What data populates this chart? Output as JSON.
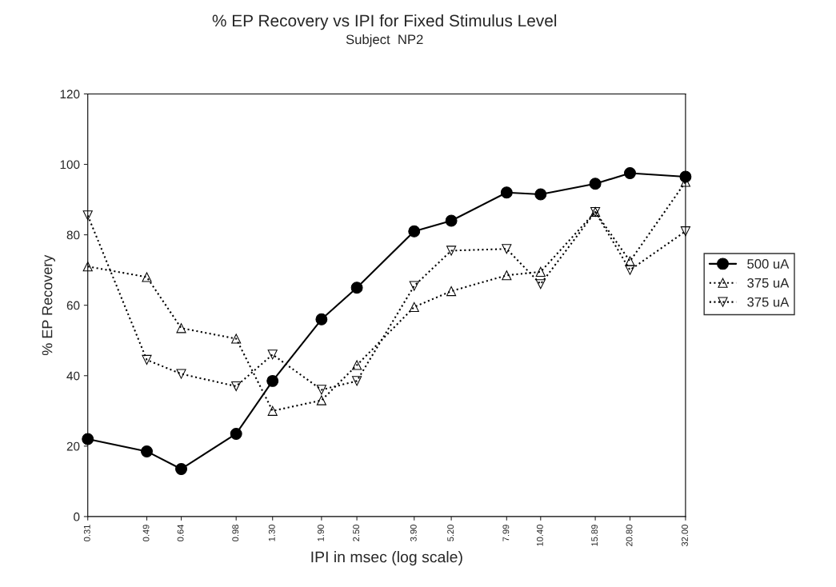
{
  "chart_data": {
    "type": "line",
    "title": "% EP Recovery vs IPI for Fixed Stimulus Level",
    "subtitle": "Subject  NP2",
    "xlabel": "IPI in msec (log scale)",
    "ylabel": "% EP Recovery",
    "log": "x",
    "x": [
      0.31,
      0.49,
      0.64,
      0.98,
      1.3,
      1.9,
      2.5,
      3.9,
      5.2,
      7.99,
      10.4,
      15.89,
      20.8,
      32.0
    ],
    "series": [
      {
        "name": "500 uA",
        "color": "#000000",
        "marker": "circle",
        "line_style": "solid",
        "values": [
          22,
          18.5,
          13.5,
          23.5,
          38.5,
          56,
          65,
          81,
          84,
          92,
          91.5,
          94.5,
          97.5,
          96.5
        ]
      },
      {
        "name": "375 uA",
        "color": "#000000",
        "marker": "triangle",
        "line_style": "dotted",
        "values": [
          71,
          68,
          53.5,
          50.5,
          30,
          33,
          43,
          59.5,
          64,
          68.5,
          69.5,
          86.5,
          72.5,
          95
        ]
      },
      {
        "name": "375 uA",
        "color": "#000000",
        "marker": "triangle_down",
        "line_style": "dotted",
        "values": [
          85.5,
          44.5,
          40.5,
          37,
          46,
          36,
          38.5,
          65.5,
          75.5,
          76,
          66,
          86.5,
          70,
          81
        ]
      }
    ],
    "xlim": [
      0.31,
      32.0
    ],
    "xticks": [
      {
        "value": 0.31,
        "label": "0.31"
      },
      {
        "value": 0.49,
        "label": "0.49"
      },
      {
        "value": 0.64,
        "label": "0.64"
      },
      {
        "value": 0.98,
        "label": "0.98"
      },
      {
        "value": 1.3,
        "label": "1.30"
      },
      {
        "value": 1.9,
        "label": "1.90"
      },
      {
        "value": 2.5,
        "label": "2.50"
      },
      {
        "value": 3.9,
        "label": "3.90"
      },
      {
        "value": 5.2,
        "label": "5.20"
      },
      {
        "value": 7.99,
        "label": "7.99"
      },
      {
        "value": 10.4,
        "label": "10.40"
      },
      {
        "value": 15.89,
        "label": "15.89"
      },
      {
        "value": 20.8,
        "label": "20.80"
      },
      {
        "value": 32.0,
        "label": "32.00"
      }
    ],
    "ylim": [
      0,
      120
    ],
    "yticks": [
      0,
      20,
      40,
      60,
      80,
      100,
      120
    ],
    "grid": false,
    "legend": "right"
  }
}
